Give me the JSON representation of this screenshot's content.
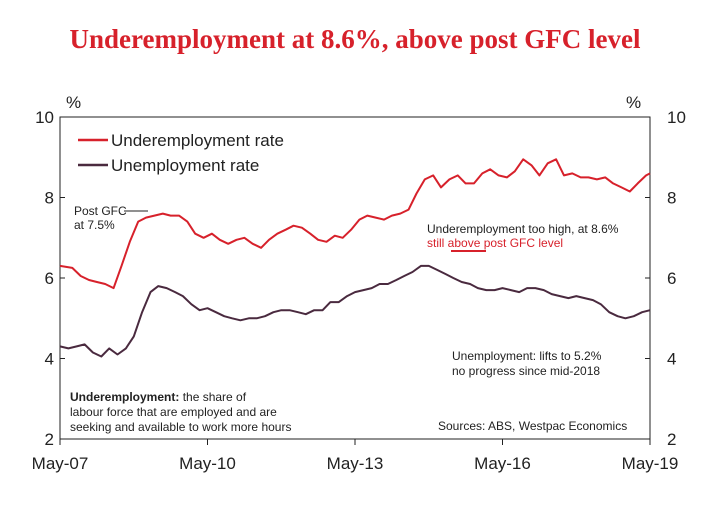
{
  "chart_data": {
    "type": "line",
    "title": "Underemployment at 8.6%, above post GFC level",
    "y_unit_left": "%",
    "y_unit_right": "%",
    "ylim": [
      2,
      10
    ],
    "yticks": [
      "2",
      "4",
      "6",
      "8",
      "10"
    ],
    "xlim": [
      2007.33,
      2019.33
    ],
    "xticks": [
      {
        "label": "May-07",
        "x": 2007.33
      },
      {
        "label": "May-10",
        "x": 2010.33
      },
      {
        "label": "May-13",
        "x": 2013.33
      },
      {
        "label": "May-16",
        "x": 2016.33
      },
      {
        "label": "May-19",
        "x": 2019.33
      }
    ],
    "legend_position": "top-left",
    "grid": false,
    "series": [
      {
        "name": "Underemployment rate",
        "color": "#d7212b",
        "points": [
          [
            2007.33,
            6.3
          ],
          [
            2007.58,
            6.25
          ],
          [
            2007.75,
            6.05
          ],
          [
            2007.92,
            5.95
          ],
          [
            2008.08,
            5.9
          ],
          [
            2008.25,
            5.85
          ],
          [
            2008.42,
            5.75
          ],
          [
            2008.58,
            6.3
          ],
          [
            2008.75,
            6.9
          ],
          [
            2008.92,
            7.4
          ],
          [
            2009.08,
            7.5
          ],
          [
            2009.25,
            7.55
          ],
          [
            2009.42,
            7.6
          ],
          [
            2009.58,
            7.55
          ],
          [
            2009.75,
            7.55
          ],
          [
            2009.92,
            7.4
          ],
          [
            2010.08,
            7.1
          ],
          [
            2010.25,
            7.0
          ],
          [
            2010.42,
            7.1
          ],
          [
            2010.58,
            6.95
          ],
          [
            2010.75,
            6.85
          ],
          [
            2010.92,
            6.95
          ],
          [
            2011.08,
            7.0
          ],
          [
            2011.25,
            6.85
          ],
          [
            2011.42,
            6.75
          ],
          [
            2011.58,
            6.95
          ],
          [
            2011.75,
            7.1
          ],
          [
            2011.92,
            7.2
          ],
          [
            2012.08,
            7.3
          ],
          [
            2012.25,
            7.25
          ],
          [
            2012.42,
            7.1
          ],
          [
            2012.58,
            6.95
          ],
          [
            2012.75,
            6.9
          ],
          [
            2012.92,
            7.05
          ],
          [
            2013.08,
            7.0
          ],
          [
            2013.25,
            7.2
          ],
          [
            2013.42,
            7.45
          ],
          [
            2013.58,
            7.55
          ],
          [
            2013.75,
            7.5
          ],
          [
            2013.92,
            7.45
          ],
          [
            2014.08,
            7.55
          ],
          [
            2014.25,
            7.6
          ],
          [
            2014.42,
            7.7
          ],
          [
            2014.58,
            8.1
          ],
          [
            2014.75,
            8.45
          ],
          [
            2014.92,
            8.55
          ],
          [
            2015.08,
            8.25
          ],
          [
            2015.25,
            8.45
          ],
          [
            2015.42,
            8.55
          ],
          [
            2015.58,
            8.35
          ],
          [
            2015.75,
            8.35
          ],
          [
            2015.92,
            8.6
          ],
          [
            2016.08,
            8.7
          ],
          [
            2016.25,
            8.55
          ],
          [
            2016.42,
            8.5
          ],
          [
            2016.58,
            8.65
          ],
          [
            2016.75,
            8.95
          ],
          [
            2016.92,
            8.8
          ],
          [
            2017.08,
            8.55
          ],
          [
            2017.25,
            8.85
          ],
          [
            2017.42,
            8.95
          ],
          [
            2017.58,
            8.55
          ],
          [
            2017.75,
            8.6
          ],
          [
            2017.92,
            8.5
          ],
          [
            2018.08,
            8.5
          ],
          [
            2018.25,
            8.45
          ],
          [
            2018.42,
            8.5
          ],
          [
            2018.58,
            8.35
          ],
          [
            2018.75,
            8.25
          ],
          [
            2018.92,
            8.15
          ],
          [
            2019.08,
            8.35
          ],
          [
            2019.25,
            8.55
          ],
          [
            2019.33,
            8.6
          ]
        ]
      },
      {
        "name": "Unemployment rate",
        "color": "#4a2a3f",
        "points": [
          [
            2007.33,
            4.3
          ],
          [
            2007.5,
            4.25
          ],
          [
            2007.67,
            4.3
          ],
          [
            2007.83,
            4.35
          ],
          [
            2008.0,
            4.15
          ],
          [
            2008.17,
            4.05
          ],
          [
            2008.33,
            4.25
          ],
          [
            2008.5,
            4.1
          ],
          [
            2008.67,
            4.25
          ],
          [
            2008.83,
            4.55
          ],
          [
            2009.0,
            5.15
          ],
          [
            2009.17,
            5.65
          ],
          [
            2009.33,
            5.8
          ],
          [
            2009.5,
            5.75
          ],
          [
            2009.67,
            5.65
          ],
          [
            2009.83,
            5.55
          ],
          [
            2010.0,
            5.35
          ],
          [
            2010.17,
            5.2
          ],
          [
            2010.33,
            5.25
          ],
          [
            2010.5,
            5.15
          ],
          [
            2010.67,
            5.05
          ],
          [
            2010.83,
            5.0
          ],
          [
            2011.0,
            4.95
          ],
          [
            2011.17,
            5.0
          ],
          [
            2011.33,
            5.0
          ],
          [
            2011.5,
            5.05
          ],
          [
            2011.67,
            5.15
          ],
          [
            2011.83,
            5.2
          ],
          [
            2012.0,
            5.2
          ],
          [
            2012.17,
            5.15
          ],
          [
            2012.33,
            5.1
          ],
          [
            2012.5,
            5.2
          ],
          [
            2012.67,
            5.2
          ],
          [
            2012.83,
            5.4
          ],
          [
            2013.0,
            5.4
          ],
          [
            2013.17,
            5.55
          ],
          [
            2013.33,
            5.65
          ],
          [
            2013.5,
            5.7
          ],
          [
            2013.67,
            5.75
          ],
          [
            2013.83,
            5.85
          ],
          [
            2014.0,
            5.85
          ],
          [
            2014.17,
            5.95
          ],
          [
            2014.33,
            6.05
          ],
          [
            2014.5,
            6.15
          ],
          [
            2014.67,
            6.3
          ],
          [
            2014.83,
            6.3
          ],
          [
            2015.0,
            6.2
          ],
          [
            2015.17,
            6.1
          ],
          [
            2015.33,
            6.0
          ],
          [
            2015.5,
            5.9
          ],
          [
            2015.67,
            5.85
          ],
          [
            2015.83,
            5.75
          ],
          [
            2016.0,
            5.7
          ],
          [
            2016.17,
            5.7
          ],
          [
            2016.33,
            5.75
          ],
          [
            2016.5,
            5.7
          ],
          [
            2016.67,
            5.65
          ],
          [
            2016.83,
            5.75
          ],
          [
            2017.0,
            5.75
          ],
          [
            2017.17,
            5.7
          ],
          [
            2017.33,
            5.6
          ],
          [
            2017.5,
            5.55
          ],
          [
            2017.67,
            5.5
          ],
          [
            2017.83,
            5.55
          ],
          [
            2018.0,
            5.5
          ],
          [
            2018.17,
            5.45
          ],
          [
            2018.33,
            5.35
          ],
          [
            2018.5,
            5.15
          ],
          [
            2018.67,
            5.05
          ],
          [
            2018.83,
            5.0
          ],
          [
            2019.0,
            5.05
          ],
          [
            2019.17,
            5.15
          ],
          [
            2019.33,
            5.2
          ]
        ]
      }
    ],
    "annotations": {
      "post_gfc": [
        "Post GFC",
        "at 7.5%"
      ],
      "underemp_1": "Underemployment too high, at 8.6%",
      "underemp_2a": "still ",
      "underemp_2b": "above",
      "underemp_2c": " post GFC level",
      "unemp_1": "Unemployment: lifts to 5.2%",
      "unemp_2": "no progress since mid-2018",
      "def_bold": "Underemployment:",
      "def_1": " the share of",
      "def_2": "labour force that are employed and are",
      "def_3": "seeking and available to work more hours",
      "source": "Sources: ABS, Westpac Economics"
    }
  }
}
